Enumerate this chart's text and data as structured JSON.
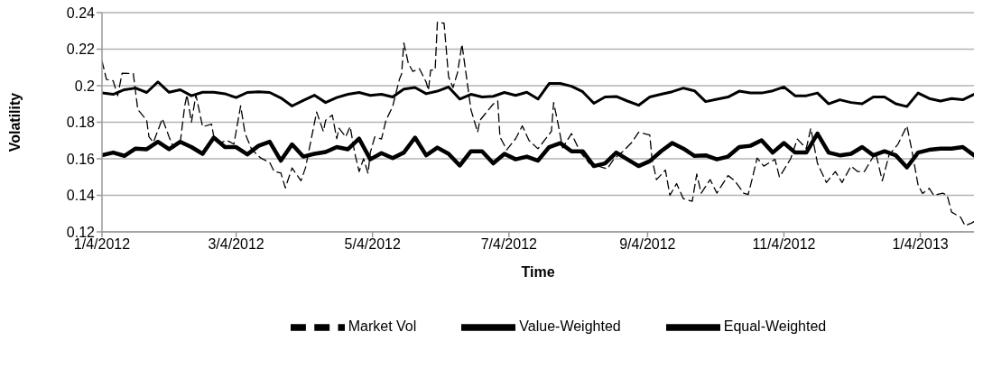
{
  "chart_data": {
    "type": "line",
    "xlabel": "Time",
    "ylabel": "Volatility",
    "xlim": [
      "2012-01-04",
      "2013-01-28"
    ],
    "xticks": [
      {
        "value": "2012-01-04",
        "label": "1/4/2012"
      },
      {
        "value": "2012-03-04",
        "label": "3/4/2012"
      },
      {
        "value": "2012-05-04",
        "label": "5/4/2012"
      },
      {
        "value": "2012-07-04",
        "label": "7/4/2012"
      },
      {
        "value": "2012-09-04",
        "label": "9/4/2012"
      },
      {
        "value": "2012-11-04",
        "label": "11/4/2012"
      },
      {
        "value": "2013-01-04",
        "label": "1/4/2013"
      }
    ],
    "ylim": [
      0.12,
      0.24
    ],
    "yticks": [
      0.12,
      0.14,
      0.16,
      0.18,
      0.2,
      0.22,
      0.24
    ],
    "grid": "y",
    "legend": "bottom",
    "marker": "none",
    "x": [
      "2012-01-04",
      "2012-01-09",
      "2012-01-14",
      "2012-01-19",
      "2012-01-24",
      "2012-01-29",
      "2012-02-03",
      "2012-02-08",
      "2012-02-13",
      "2012-02-18",
      "2012-02-23",
      "2012-02-28",
      "2012-03-04",
      "2012-03-09",
      "2012-03-14",
      "2012-03-19",
      "2012-03-24",
      "2012-03-29",
      "2012-04-03",
      "2012-04-08",
      "2012-04-13",
      "2012-04-18",
      "2012-04-23",
      "2012-04-28",
      "2012-05-03",
      "2012-05-08",
      "2012-05-13",
      "2012-05-18",
      "2012-05-23",
      "2012-05-28",
      "2012-06-02",
      "2012-06-07",
      "2012-06-12",
      "2012-06-17",
      "2012-06-22",
      "2012-06-27",
      "2012-07-02",
      "2012-07-07",
      "2012-07-12",
      "2012-07-17",
      "2012-07-22",
      "2012-07-27",
      "2012-08-01",
      "2012-08-06",
      "2012-08-11",
      "2012-08-16",
      "2012-08-21",
      "2012-08-26",
      "2012-08-31",
      "2012-09-05",
      "2012-09-10",
      "2012-09-15",
      "2012-09-20",
      "2012-09-25",
      "2012-09-30",
      "2012-10-05",
      "2012-10-10",
      "2012-10-15",
      "2012-10-20",
      "2012-10-25",
      "2012-10-30",
      "2012-11-04",
      "2012-11-09",
      "2012-11-14",
      "2012-11-19",
      "2012-11-24",
      "2012-11-29",
      "2012-12-04",
      "2012-12-09",
      "2012-12-14",
      "2012-12-19",
      "2012-12-24",
      "2012-12-29",
      "2013-01-03",
      "2013-01-08",
      "2013-01-13",
      "2013-01-18",
      "2013-01-23",
      "2013-01-28"
    ],
    "series": [
      {
        "name": "Market Vol",
        "color": "#000000",
        "line_style": "dashed",
        "x": [
          "2012-01-04",
          "2012-01-06",
          "2012-01-09",
          "2012-01-11",
          "2012-01-13",
          "2012-01-18",
          "2012-01-20",
          "2012-01-24",
          "2012-01-25",
          "2012-01-27",
          "2012-01-31",
          "2012-02-03",
          "2012-02-05",
          "2012-02-08",
          "2012-02-10",
          "2012-02-11",
          "2012-02-13",
          "2012-02-15",
          "2012-02-18",
          "2012-02-22",
          "2012-02-23",
          "2012-02-25",
          "2012-02-29",
          "2012-03-03",
          "2012-03-06",
          "2012-03-08",
          "2012-03-11",
          "2012-03-15",
          "2012-03-19",
          "2012-03-21",
          "2012-03-24",
          "2012-03-26",
          "2012-03-29",
          "2012-04-02",
          "2012-04-04",
          "2012-04-09",
          "2012-04-12",
          "2012-04-13",
          "2012-04-16",
          "2012-04-18",
          "2012-04-19",
          "2012-04-22",
          "2012-04-24",
          "2012-04-26",
          "2012-04-28",
          "2012-04-30",
          "2012-05-02",
          "2012-05-03",
          "2012-05-05",
          "2012-05-08",
          "2012-05-10",
          "2012-05-13",
          "2012-05-16",
          "2012-05-17",
          "2012-05-18",
          "2012-05-20",
          "2012-05-22",
          "2012-05-25",
          "2012-05-28",
          "2012-05-29",
          "2012-05-30",
          "2012-06-01",
          "2012-06-02",
          "2012-06-05",
          "2012-06-07",
          "2012-06-09",
          "2012-06-11",
          "2012-06-13",
          "2012-06-16",
          "2012-06-17",
          "2012-06-20",
          "2012-06-21",
          "2012-06-27",
          "2012-06-29",
          "2012-06-30",
          "2012-07-03",
          "2012-07-07",
          "2012-07-10",
          "2012-07-13",
          "2012-07-17",
          "2012-07-23",
          "2012-07-24",
          "2012-07-26",
          "2012-07-28",
          "2012-08-01",
          "2012-08-05",
          "2012-08-09",
          "2012-08-13",
          "2012-08-17",
          "2012-08-20",
          "2012-08-24",
          "2012-08-28",
          "2012-08-31",
          "2012-09-05",
          "2012-09-06",
          "2012-09-08",
          "2012-09-12",
          "2012-09-14",
          "2012-09-17",
          "2012-09-20",
          "2012-09-24",
          "2012-09-26",
          "2012-09-28",
          "2012-10-02",
          "2012-10-05",
          "2012-10-10",
          "2012-10-13",
          "2012-10-17",
          "2012-10-19",
          "2012-10-21",
          "2012-10-23",
          "2012-10-26",
          "2012-10-31",
          "2012-11-02",
          "2012-11-07",
          "2012-11-10",
          "2012-11-14",
          "2012-11-16",
          "2012-11-19",
          "2012-11-23",
          "2012-11-27",
          "2012-11-30",
          "2012-12-04",
          "2012-12-07",
          "2012-12-10",
          "2012-12-15",
          "2012-12-18",
          "2012-12-21",
          "2012-12-25",
          "2012-12-29",
          "2012-12-31",
          "2013-01-03",
          "2013-01-05",
          "2013-01-08",
          "2013-01-10",
          "2013-01-14",
          "2013-01-16",
          "2013-01-18",
          "2013-01-22",
          "2013-01-24",
          "2013-01-27",
          "2013-01-28"
        ],
        "values": [
          0.2135,
          0.2034,
          0.2027,
          0.1945,
          0.2069,
          0.2066,
          0.187,
          0.181,
          0.172,
          0.169,
          0.182,
          0.172,
          0.166,
          0.169,
          0.189,
          0.195,
          0.18,
          0.195,
          0.1775,
          0.179,
          0.172,
          0.1686,
          0.17,
          0.168,
          0.189,
          0.1738,
          0.165,
          0.1604,
          0.158,
          0.153,
          0.1523,
          0.144,
          0.155,
          0.148,
          0.155,
          0.1856,
          0.175,
          0.181,
          0.184,
          0.171,
          0.1767,
          0.172,
          0.1776,
          0.1634,
          0.153,
          0.16,
          0.152,
          0.1634,
          0.172,
          0.1708,
          0.181,
          0.1886,
          0.2034,
          0.2064,
          0.2234,
          0.2123,
          0.2078,
          0.2093,
          0.2019,
          0.1975,
          0.2086,
          0.2086,
          0.2348,
          0.2342,
          0.2049,
          0.199,
          0.2071,
          0.2227,
          0.196,
          0.187,
          0.1745,
          0.181,
          0.19,
          0.1916,
          0.172,
          0.1649,
          0.171,
          0.178,
          0.17,
          0.1655,
          0.175,
          0.1908,
          0.179,
          0.166,
          0.1738,
          0.1634,
          0.1575,
          0.156,
          0.1545,
          0.16,
          0.164,
          0.169,
          0.1745,
          0.173,
          0.16,
          0.1486,
          0.1538,
          0.14,
          0.1464,
          0.1382,
          0.1367,
          0.1516,
          0.1412,
          0.1486,
          0.1412,
          0.1508,
          0.148,
          0.1412,
          0.1404,
          0.15,
          0.1604,
          0.156,
          0.1597,
          0.15,
          0.16,
          0.1708,
          0.1656,
          0.1767,
          0.1575,
          0.147,
          0.153,
          0.147,
          0.156,
          0.153,
          0.153,
          0.1634,
          0.148,
          0.162,
          0.168,
          0.178,
          0.166,
          0.1456,
          0.141,
          0.1438,
          0.14,
          0.1412,
          0.14,
          0.1308,
          0.128,
          0.1234,
          0.1249,
          0.1256
        ]
      },
      {
        "name": "Value-Weighted",
        "color": "#000000",
        "line_style": "solid",
        "values": [
          0.1619,
          0.1634,
          0.1616,
          0.1656,
          0.1652,
          0.1693,
          0.1652,
          0.1693,
          0.1664,
          0.1627,
          0.1716,
          0.1664,
          0.1664,
          0.1624,
          0.1671,
          0.1693,
          0.159,
          0.1679,
          0.1612,
          0.1627,
          0.1637,
          0.1664,
          0.1652,
          0.171,
          0.1597,
          0.1631,
          0.1604,
          0.1634,
          0.1716,
          0.1619,
          0.1661,
          0.1627,
          0.1563,
          0.1641,
          0.1641,
          0.1575,
          0.1627,
          0.1597,
          0.1612,
          0.159,
          0.1664,
          0.1686,
          0.1641,
          0.1641,
          0.156,
          0.1575,
          0.1634,
          0.1597,
          0.156,
          0.1587,
          0.1641,
          0.1686,
          0.1656,
          0.1616,
          0.1619,
          0.1597,
          0.1612,
          0.1664,
          0.1671,
          0.1701,
          0.1634,
          0.1686,
          0.1634,
          0.1634,
          0.1738,
          0.1634,
          0.1619,
          0.1627,
          0.1664,
          0.1619,
          0.1641,
          0.1619,
          0.1553,
          0.1634,
          0.1649,
          0.1656,
          0.1656,
          0.1664,
          0.1619
        ]
      },
      {
        "name": "Equal-Weighted",
        "color": "#000000",
        "line_style": "solid",
        "values": [
          0.196,
          0.1953,
          0.1978,
          0.1987,
          0.1963,
          0.2021,
          0.1964,
          0.1978,
          0.1945,
          0.1964,
          0.1964,
          0.1956,
          0.1935,
          0.1963,
          0.1967,
          0.1963,
          0.1933,
          0.1889,
          0.1919,
          0.1948,
          0.1908,
          0.1935,
          0.1953,
          0.1963,
          0.1947,
          0.1953,
          0.1938,
          0.1981,
          0.199,
          0.1956,
          0.197,
          0.1993,
          0.1927,
          0.1953,
          0.1938,
          0.1942,
          0.1963,
          0.1947,
          0.1964,
          0.1927,
          0.2012,
          0.2012,
          0.1997,
          0.1967,
          0.1904,
          0.1938,
          0.1941,
          0.1916,
          0.1893,
          0.1938,
          0.1953,
          0.1967,
          0.1987,
          0.1972,
          0.1913,
          0.1926,
          0.1938,
          0.197,
          0.196,
          0.196,
          0.1972,
          0.1993,
          0.1945,
          0.1945,
          0.196,
          0.1901,
          0.1923,
          0.1908,
          0.1901,
          0.1938,
          0.1938,
          0.1901,
          0.1886,
          0.196,
          0.193,
          0.1916,
          0.193,
          0.1923,
          0.1953
        ]
      }
    ]
  }
}
